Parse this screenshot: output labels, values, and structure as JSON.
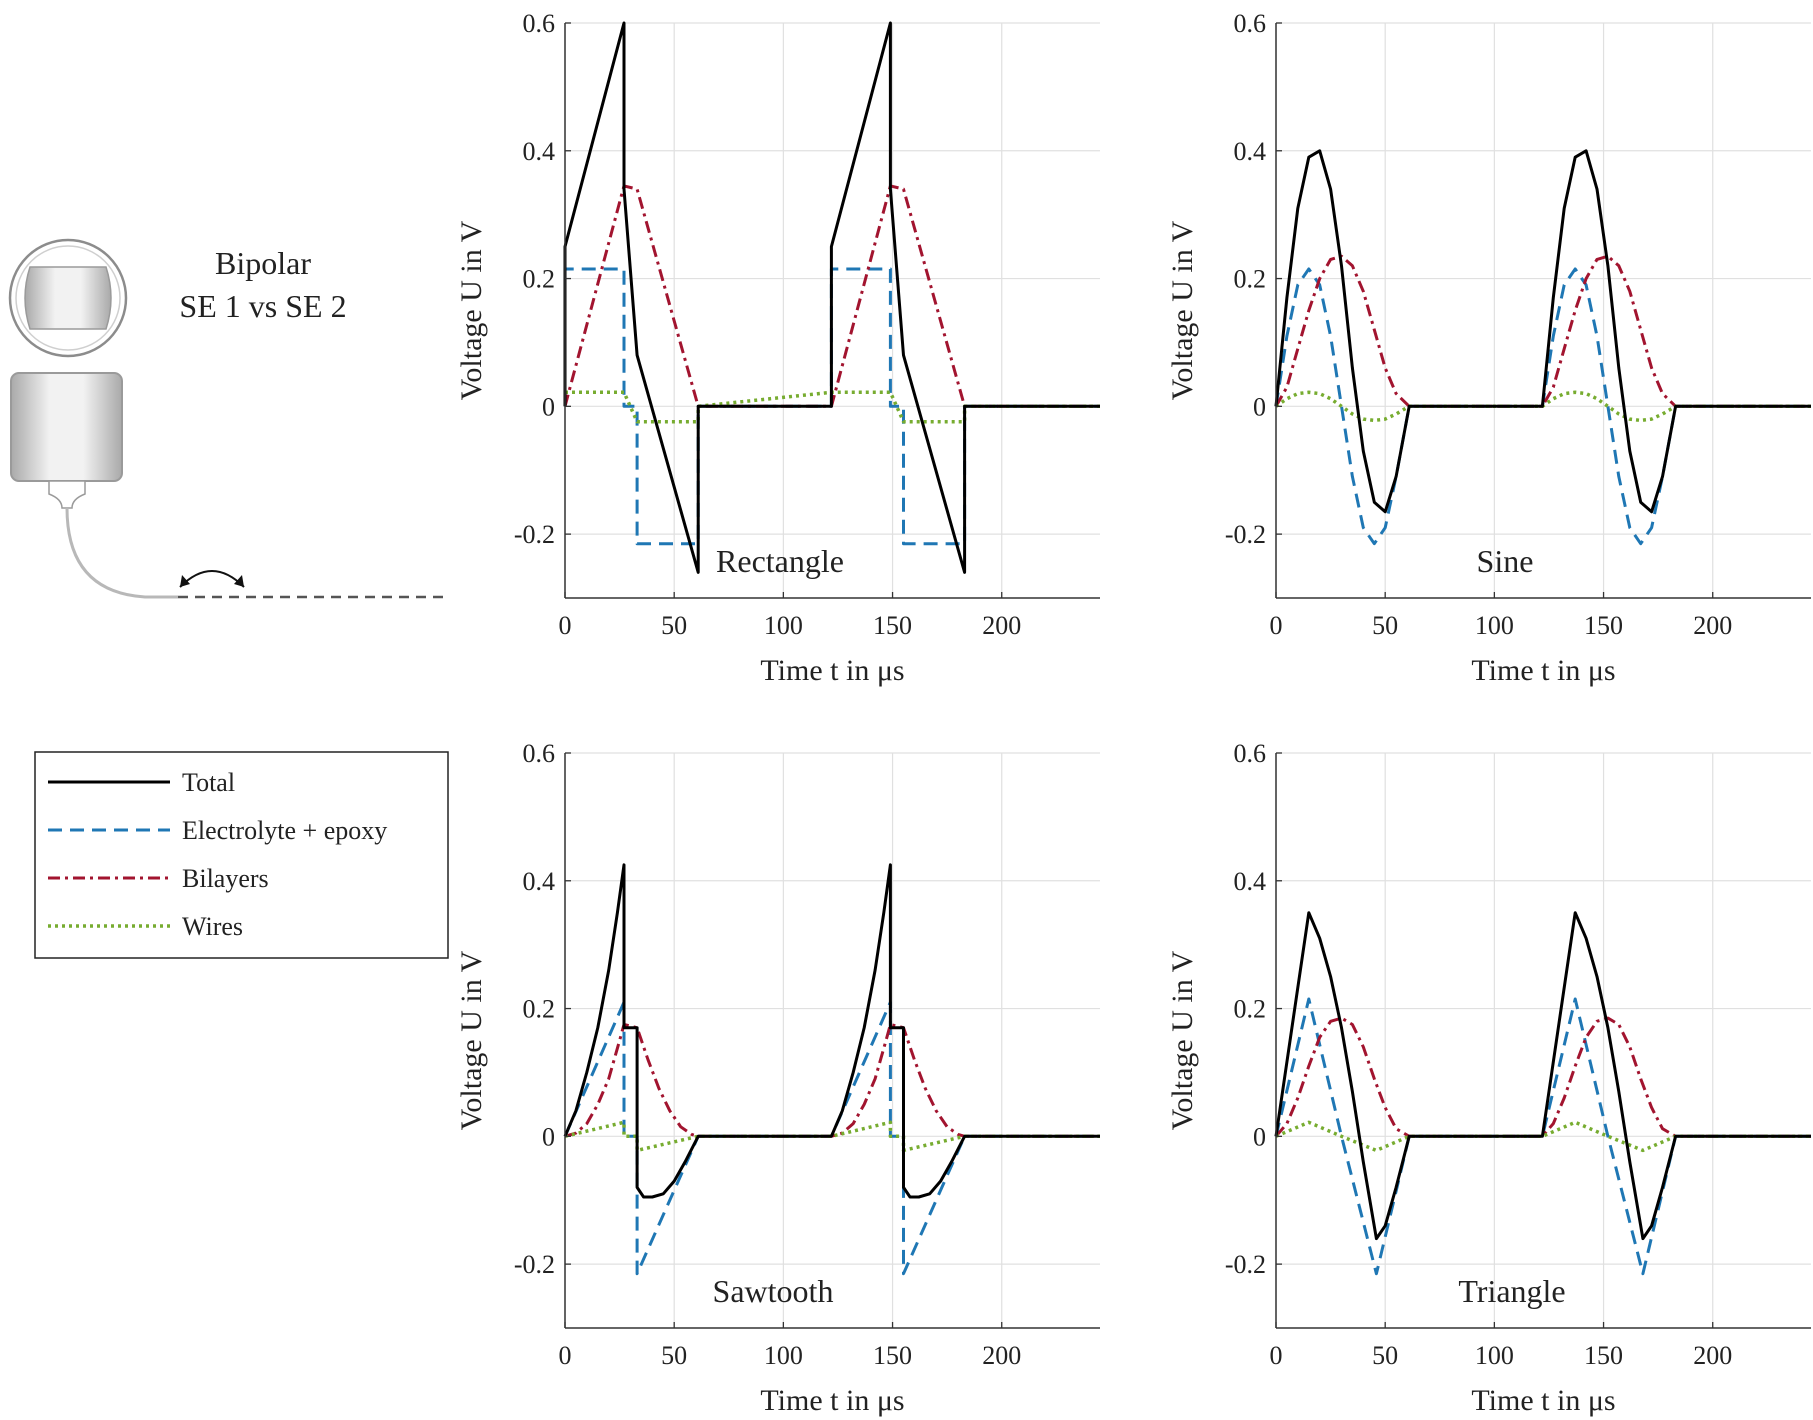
{
  "diagram": {
    "title_line1": "Bipolar",
    "title_line2": "SE 1 vs SE 2"
  },
  "legend": {
    "entries": [
      {
        "label": "Total",
        "color": "#000000",
        "dash": "solid"
      },
      {
        "label": "Electrolyte + epoxy",
        "color": "#1f77b4",
        "dash": "dashed"
      },
      {
        "label": "Bilayers",
        "color": "#a2142f",
        "dash": "dashdot"
      },
      {
        "label": "Wires",
        "color": "#77ac30",
        "dash": "dotted"
      }
    ]
  },
  "chart_data": [
    {
      "type": "line",
      "title": "Rectangle",
      "xlabel": "Time t in μs",
      "ylabel": "Voltage U in V",
      "xlim": [
        0,
        245
      ],
      "ylim": [
        -0.3,
        0.6
      ],
      "xticks": [
        0,
        50,
        100,
        150,
        200
      ],
      "yticks": [
        -0.2,
        0,
        0.2,
        0.4,
        0.6
      ],
      "xtick_labels": [
        "0",
        "50",
        "100",
        "150",
        "200"
      ],
      "ytick_labels": [
        "-0.2",
        "0",
        "0.2",
        "0.4",
        "0.6"
      ],
      "grid": true,
      "series": [
        {
          "name": "Total",
          "x": [
            0,
            0,
            27,
            27,
            33,
            61,
            61,
            122,
            122,
            149,
            149,
            155,
            183,
            183,
            245
          ],
          "y": [
            0,
            0.25,
            0.6,
            0.34,
            0.08,
            -0.26,
            0,
            0,
            0.25,
            0.6,
            0.34,
            0.08,
            -0.26,
            0,
            0
          ]
        },
        {
          "name": "Electrolyte + epoxy",
          "x": [
            0,
            0,
            27,
            27,
            33,
            33,
            61,
            61,
            122,
            122,
            149,
            149,
            155,
            155,
            183,
            183,
            245
          ],
          "y": [
            0,
            0.215,
            0.215,
            0,
            0,
            -0.215,
            -0.215,
            0,
            0,
            0.215,
            0.215,
            0,
            0,
            -0.215,
            -0.215,
            0,
            0
          ]
        },
        {
          "name": "Bilayers",
          "x": [
            0,
            27,
            33,
            61,
            122,
            149,
            155,
            183,
            245
          ],
          "y": [
            0,
            0.345,
            0.34,
            0,
            0,
            0.345,
            0.34,
            0,
            0
          ]
        },
        {
          "name": "Wires",
          "x": [
            0,
            27,
            33,
            61,
            61,
            122,
            149,
            155,
            183,
            183,
            245
          ],
          "y": [
            0.022,
            0.022,
            -0.024,
            -0.024,
            0,
            0.022,
            0.022,
            -0.024,
            -0.024,
            0,
            0
          ]
        }
      ]
    },
    {
      "type": "line",
      "title": "Sine",
      "xlabel": "Time t in μs",
      "ylabel": "Voltage U in V",
      "xlim": [
        0,
        245
      ],
      "ylim": [
        -0.3,
        0.6
      ],
      "xticks": [
        0,
        50,
        100,
        150,
        200
      ],
      "yticks": [
        -0.2,
        0,
        0.2,
        0.4,
        0.6
      ],
      "xtick_labels": [
        "0",
        "50",
        "100",
        "150",
        "200"
      ],
      "ytick_labels": [
        "-0.2",
        "0",
        "0.2",
        "0.4",
        "0.6"
      ],
      "grid": true,
      "series": [
        {
          "name": "Total",
          "x": [
            0,
            5,
            10,
            15,
            20,
            25,
            30,
            35,
            40,
            45,
            50,
            55,
            61,
            122,
            127,
            132,
            137,
            142,
            147,
            152,
            157,
            162,
            167,
            172,
            177,
            183,
            245
          ],
          "y": [
            0,
            0.17,
            0.31,
            0.39,
            0.4,
            0.34,
            0.22,
            0.06,
            -0.07,
            -0.15,
            -0.165,
            -0.11,
            0,
            0,
            0.17,
            0.31,
            0.39,
            0.4,
            0.34,
            0.22,
            0.06,
            -0.07,
            -0.15,
            -0.165,
            -0.11,
            0,
            0
          ]
        },
        {
          "name": "Electrolyte + epoxy",
          "x": [
            0,
            5,
            10,
            15,
            20,
            25,
            30,
            35,
            40,
            45,
            50,
            55,
            61,
            122,
            127,
            132,
            137,
            142,
            147,
            152,
            157,
            162,
            167,
            172,
            177,
            183,
            245
          ],
          "y": [
            0,
            0.11,
            0.19,
            0.215,
            0.19,
            0.11,
            0,
            -0.11,
            -0.19,
            -0.215,
            -0.19,
            -0.11,
            0,
            0,
            0.11,
            0.19,
            0.215,
            0.19,
            0.11,
            0,
            -0.11,
            -0.19,
            -0.215,
            -0.19,
            -0.11,
            0,
            0
          ]
        },
        {
          "name": "Bilayers",
          "x": [
            0,
            5,
            10,
            15,
            20,
            25,
            30,
            35,
            40,
            45,
            50,
            55,
            61,
            122,
            127,
            132,
            137,
            142,
            147,
            152,
            157,
            162,
            167,
            172,
            177,
            183,
            245
          ],
          "y": [
            0,
            0.03,
            0.09,
            0.15,
            0.2,
            0.23,
            0.235,
            0.22,
            0.18,
            0.12,
            0.06,
            0.02,
            0,
            0,
            0.03,
            0.09,
            0.15,
            0.2,
            0.23,
            0.235,
            0.22,
            0.18,
            0.12,
            0.06,
            0.02,
            0,
            0
          ]
        },
        {
          "name": "Wires",
          "x": [
            0,
            5,
            10,
            15,
            20,
            25,
            30,
            35,
            40,
            45,
            50,
            55,
            61,
            122,
            127,
            132,
            137,
            142,
            147,
            152,
            157,
            162,
            167,
            172,
            177,
            183,
            245
          ],
          "y": [
            0,
            0.012,
            0.02,
            0.022,
            0.02,
            0.012,
            0,
            -0.012,
            -0.02,
            -0.022,
            -0.02,
            -0.012,
            0,
            0,
            0.012,
            0.02,
            0.022,
            0.02,
            0.012,
            0,
            -0.012,
            -0.02,
            -0.022,
            -0.02,
            -0.012,
            0,
            0
          ]
        }
      ]
    },
    {
      "type": "line",
      "title": "Sawtooth",
      "xlabel": "Time t in μs",
      "ylabel": "Voltage U in V",
      "xlim": [
        0,
        245
      ],
      "ylim": [
        -0.3,
        0.6
      ],
      "xticks": [
        0,
        50,
        100,
        150,
        200
      ],
      "yticks": [
        -0.2,
        0,
        0.2,
        0.4,
        0.6
      ],
      "xtick_labels": [
        "0",
        "50",
        "100",
        "150",
        "200"
      ],
      "ytick_labels": [
        "-0.2",
        "0",
        "0.2",
        "0.4",
        "0.6"
      ],
      "grid": true,
      "series": [
        {
          "name": "Total",
          "x": [
            0,
            5,
            10,
            15,
            20,
            24,
            27,
            27,
            33,
            33,
            36,
            40,
            45,
            50,
            55,
            61,
            122,
            127,
            132,
            137,
            142,
            146,
            149,
            149,
            155,
            155,
            158,
            162,
            167,
            172,
            177,
            183,
            245
          ],
          "y": [
            0,
            0.04,
            0.1,
            0.17,
            0.26,
            0.35,
            0.425,
            0.17,
            0.17,
            -0.08,
            -0.095,
            -0.095,
            -0.09,
            -0.07,
            -0.04,
            0,
            0,
            0.04,
            0.1,
            0.17,
            0.26,
            0.35,
            0.425,
            0.17,
            0.17,
            -0.08,
            -0.095,
            -0.095,
            -0.09,
            -0.07,
            -0.04,
            0,
            0
          ]
        },
        {
          "name": "Electrolyte + epoxy",
          "x": [
            0,
            27,
            27,
            33,
            33,
            61,
            122,
            149,
            149,
            155,
            155,
            183,
            245
          ],
          "y": [
            0,
            0.21,
            0,
            0,
            -0.215,
            0,
            0,
            0.21,
            0,
            0,
            -0.215,
            0,
            0
          ]
        },
        {
          "name": "Bilayers",
          "x": [
            0,
            5,
            10,
            15,
            20,
            25,
            27,
            33,
            38,
            43,
            48,
            53,
            58,
            61,
            122,
            127,
            132,
            137,
            142,
            147,
            149,
            155,
            160,
            165,
            170,
            175,
            180,
            183,
            245
          ],
          "y": [
            0,
            0.005,
            0.02,
            0.05,
            0.09,
            0.15,
            0.175,
            0.17,
            0.12,
            0.075,
            0.04,
            0.015,
            0.003,
            0,
            0,
            0.005,
            0.02,
            0.05,
            0.09,
            0.15,
            0.175,
            0.17,
            0.12,
            0.075,
            0.04,
            0.015,
            0.003,
            0,
            0
          ]
        },
        {
          "name": "Wires",
          "x": [
            0,
            27,
            27,
            33,
            33,
            61,
            122,
            149,
            149,
            155,
            155,
            183,
            245
          ],
          "y": [
            0,
            0.022,
            0,
            0,
            -0.022,
            0,
            0,
            0.022,
            0,
            0,
            -0.022,
            0,
            0
          ]
        }
      ]
    },
    {
      "type": "line",
      "title": "Triangle",
      "xlabel": "Time t in μs",
      "ylabel": "Voltage U in V",
      "xlim": [
        0,
        245
      ],
      "ylim": [
        -0.3,
        0.6
      ],
      "xticks": [
        0,
        50,
        100,
        150,
        200
      ],
      "yticks": [
        -0.2,
        0,
        0.2,
        0.4,
        0.6
      ],
      "xtick_labels": [
        "0",
        "50",
        "100",
        "150",
        "200"
      ],
      "ytick_labels": [
        "-0.2",
        "0",
        "0.2",
        "0.4",
        "0.6"
      ],
      "grid": true,
      "series": [
        {
          "name": "Total",
          "x": [
            0,
            15,
            20,
            25,
            30,
            35,
            40,
            46,
            50,
            55,
            61,
            122,
            137,
            142,
            147,
            152,
            157,
            162,
            168,
            172,
            177,
            183,
            245
          ],
          "y": [
            0,
            0.35,
            0.31,
            0.25,
            0.17,
            0.07,
            -0.04,
            -0.16,
            -0.14,
            -0.08,
            0,
            0,
            0.35,
            0.31,
            0.25,
            0.17,
            0.07,
            -0.04,
            -0.16,
            -0.14,
            -0.08,
            0,
            0
          ]
        },
        {
          "name": "Electrolyte + epoxy",
          "x": [
            0,
            15,
            30,
            46,
            61,
            122,
            137,
            152,
            168,
            183,
            245
          ],
          "y": [
            0,
            0.215,
            0,
            -0.215,
            0,
            0,
            0.215,
            0,
            -0.215,
            0,
            0
          ]
        },
        {
          "name": "Bilayers",
          "x": [
            0,
            5,
            10,
            15,
            20,
            25,
            30,
            35,
            40,
            45,
            50,
            55,
            61,
            122,
            127,
            132,
            137,
            142,
            147,
            152,
            157,
            162,
            167,
            172,
            177,
            183,
            245
          ],
          "y": [
            0,
            0.02,
            0.06,
            0.11,
            0.155,
            0.18,
            0.185,
            0.175,
            0.14,
            0.09,
            0.045,
            0.012,
            0,
            0,
            0.02,
            0.06,
            0.11,
            0.155,
            0.18,
            0.185,
            0.175,
            0.14,
            0.09,
            0.045,
            0.012,
            0,
            0
          ]
        },
        {
          "name": "Wires",
          "x": [
            0,
            15,
            30,
            46,
            61,
            122,
            137,
            152,
            168,
            183,
            245
          ],
          "y": [
            0,
            0.022,
            0,
            -0.022,
            0,
            0,
            0.022,
            0,
            -0.022,
            0,
            0
          ]
        }
      ]
    }
  ]
}
